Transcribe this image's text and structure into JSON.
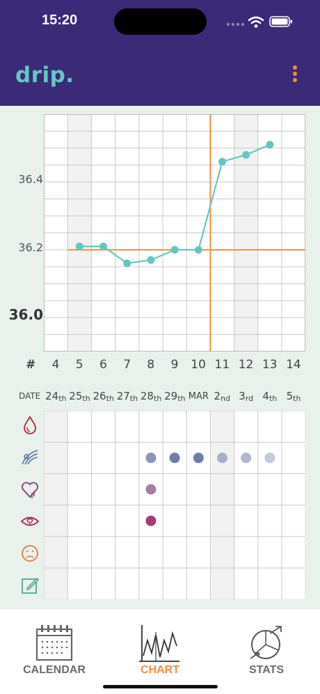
{
  "status": {
    "time": "15:20"
  },
  "app": {
    "logo": "drip.",
    "menu_icon": "kebab-icon",
    "accent": "#3a2a77",
    "teal": "#63c7c1",
    "orange": "#f08f3e"
  },
  "chart": {
    "y_labels": [
      {
        "text": "36.4",
        "value": 36.4
      },
      {
        "text": "36.2",
        "value": 36.2
      },
      {
        "text": "36.0",
        "value": 36.0,
        "bold": true
      }
    ],
    "cycle_row_label": "#",
    "cycle_days": [
      "4",
      "5",
      "6",
      "7",
      "8",
      "9",
      "10",
      "11",
      "12",
      "13",
      "14"
    ],
    "date_row_label": "DATE",
    "dates": [
      {
        "main": "24",
        "suffix": "th"
      },
      {
        "main": "25",
        "suffix": "th"
      },
      {
        "main": "26",
        "suffix": "th"
      },
      {
        "main": "27",
        "suffix": "th"
      },
      {
        "main": "28",
        "suffix": "th"
      },
      {
        "main": "29",
        "suffix": "th"
      },
      {
        "main": "MAR",
        "suffix": ""
      },
      {
        "main": "2",
        "suffix": "nd"
      },
      {
        "main": "3",
        "suffix": "rd"
      },
      {
        "main": "4",
        "suffix": "th"
      },
      {
        "main": "5",
        "suffix": "th"
      }
    ],
    "symptom_icons": [
      "bleeding-icon",
      "mucus-icon",
      "desire-icon",
      "sex-icon",
      "pain-icon",
      "note-icon"
    ]
  },
  "chart_data": {
    "type": "line",
    "x": [
      "5",
      "6",
      "7",
      "8",
      "9",
      "10",
      "11",
      "12",
      "13"
    ],
    "y": [
      36.21,
      36.21,
      36.16,
      36.17,
      36.2,
      36.2,
      36.46,
      36.48,
      36.51
    ],
    "ylim": [
      35.9,
      36.6
    ],
    "coverline": 36.2,
    "ovulation_after_day": "10",
    "grid": true,
    "line_color": "#63c7c1",
    "marker_color": "#f08f3e"
  },
  "symptoms": {
    "mucus": [
      {
        "day": "8",
        "color": "#8b96b8"
      },
      {
        "day": "9",
        "color": "#6f7ea9"
      },
      {
        "day": "10",
        "color": "#6f7ea9"
      },
      {
        "day": "11",
        "color": "#a7b0cb"
      },
      {
        "day": "12",
        "color": "#b0b8d2"
      },
      {
        "day": "13",
        "color": "#c4cadd"
      }
    ],
    "desire": [
      {
        "day": "8",
        "color": "#a97ca8"
      }
    ],
    "sex": [
      {
        "day": "8",
        "color": "#a83a6e"
      }
    ]
  },
  "tabs": [
    {
      "label": "CALENDAR",
      "icon": "calendar-icon",
      "active": false
    },
    {
      "label": "CHART",
      "icon": "chart-icon",
      "active": true
    },
    {
      "label": "STATS",
      "icon": "stats-icon",
      "active": false
    }
  ]
}
